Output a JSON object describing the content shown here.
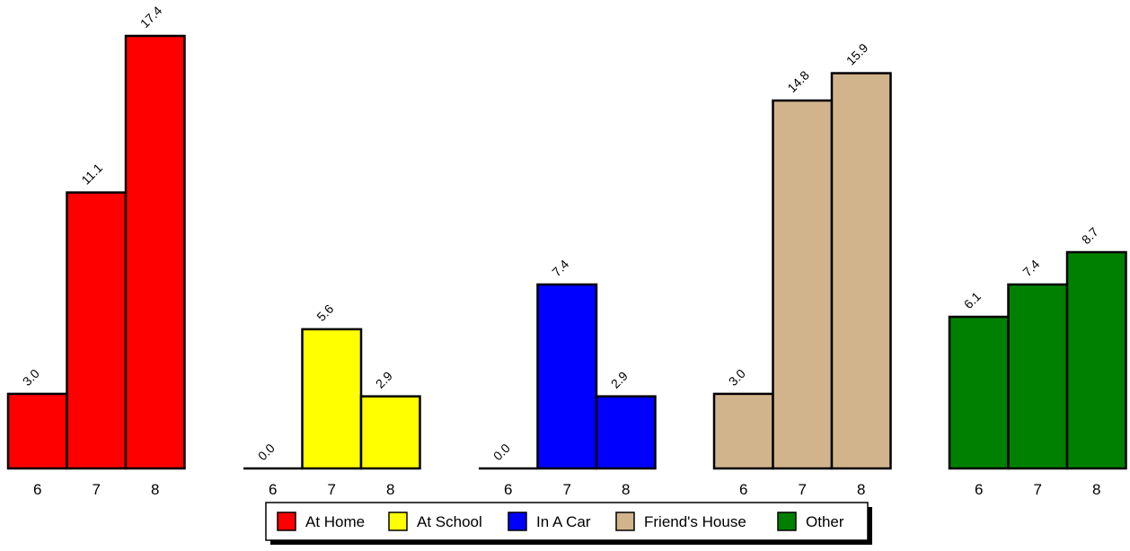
{
  "chart_data": {
    "type": "bar",
    "x": [
      "6",
      "7",
      "8"
    ],
    "series": [
      {
        "name": "At Home",
        "color": "#ff0000",
        "values": [
          3.0,
          11.1,
          17.4
        ],
        "labels": [
          "3.0",
          "11.1",
          "17.4"
        ]
      },
      {
        "name": "At School",
        "color": "#ffff00",
        "values": [
          0.0,
          5.6,
          2.9
        ],
        "labels": [
          "0.0",
          "5.6",
          "2.9"
        ]
      },
      {
        "name": "In A Car",
        "color": "#0000ff",
        "values": [
          0.0,
          7.4,
          2.9
        ],
        "labels": [
          "0.0",
          "7.4",
          "2.9"
        ]
      },
      {
        "name": "Friend's House",
        "color": "#d2b48c",
        "values": [
          3.0,
          14.8,
          15.9
        ],
        "labels": [
          "3.0",
          "14.8",
          "15.9"
        ]
      },
      {
        "name": "Other",
        "color": "#008000",
        "values": [
          6.1,
          7.4,
          8.7
        ],
        "labels": [
          "6.1",
          "7.4",
          "8.7"
        ]
      }
    ],
    "ylim": [
      0,
      17.4
    ],
    "legend_position": "bottom",
    "grid": false
  }
}
